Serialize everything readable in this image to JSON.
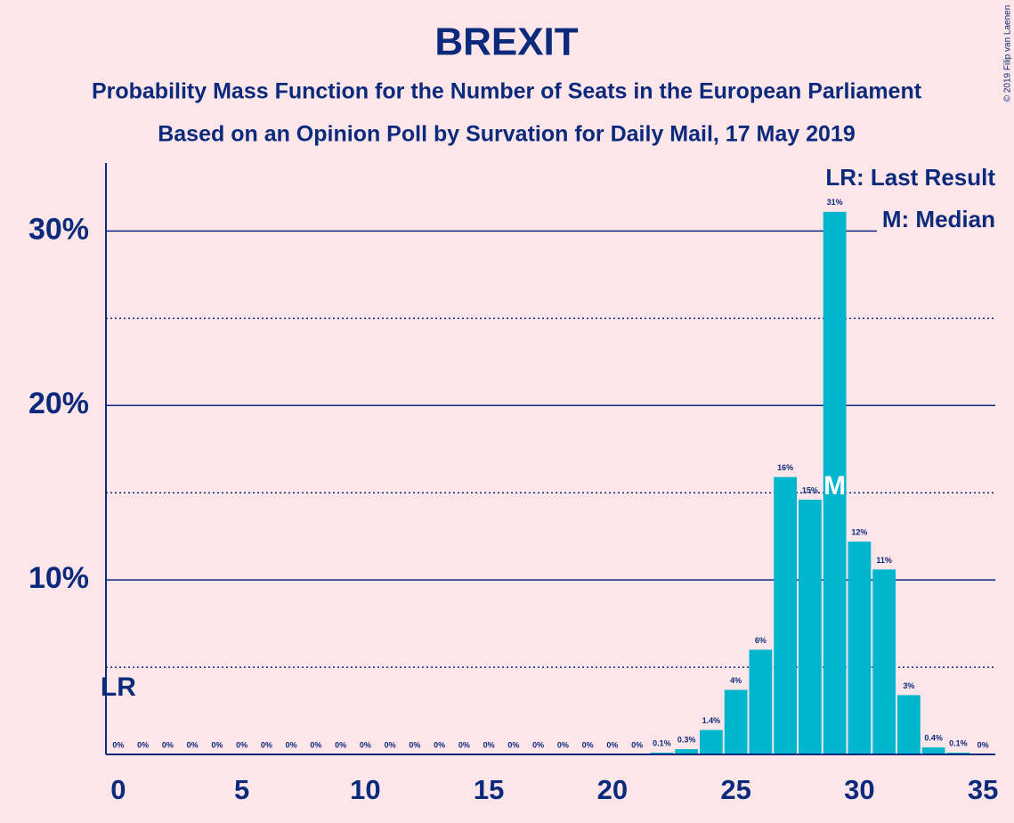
{
  "chart_data": {
    "type": "bar",
    "title": "BREXIT",
    "subtitle": "Probability Mass Function for the Number of Seats in the European Parliament",
    "subtitle2": "Based on an Opinion Poll by Survation for Daily Mail, 17 May 2019",
    "copyright": "© 2019 Filip van Laenen",
    "legend": [
      "LR: Last Result",
      "M: Median"
    ],
    "x": [
      0,
      1,
      2,
      3,
      4,
      5,
      6,
      7,
      8,
      9,
      10,
      11,
      12,
      13,
      14,
      15,
      16,
      17,
      18,
      19,
      20,
      21,
      22,
      23,
      24,
      25,
      26,
      27,
      28,
      29,
      30,
      31,
      32,
      33,
      34,
      35
    ],
    "values": [
      0,
      0,
      0,
      0,
      0,
      0,
      0,
      0,
      0,
      0,
      0,
      0,
      0,
      0,
      0,
      0,
      0,
      0,
      0,
      0,
      0,
      0,
      0.1,
      0.3,
      1.4,
      3.7,
      6.0,
      15.9,
      14.6,
      31.1,
      12.2,
      10.6,
      3.4,
      0.4,
      0.1,
      0
    ],
    "value_labels": [
      "0%",
      "0%",
      "0%",
      "0%",
      "0%",
      "0%",
      "0%",
      "0%",
      "0%",
      "0%",
      "0%",
      "0%",
      "0%",
      "0%",
      "0%",
      "0%",
      "0%",
      "0%",
      "0%",
      "0%",
      "0%",
      "0%",
      "0.1%",
      "0.3%",
      "1.4%",
      "4%",
      "6%",
      "16%",
      "15%",
      "31%",
      "12%",
      "11%",
      "3%",
      "0.4%",
      "0.1%",
      "0%"
    ],
    "color": "#00b6cf",
    "markers": [
      {
        "label": "LR",
        "x": 0
      },
      {
        "label": "M",
        "x": 29
      }
    ],
    "xlim": [
      -0.5,
      35.5
    ],
    "xticks": [
      0,
      5,
      10,
      15,
      20,
      25,
      30,
      35
    ],
    "ylim": [
      0,
      33.9
    ],
    "yticks": [
      {
        "value": 10,
        "label": "10%"
      },
      {
        "value": 20,
        "label": "20%"
      },
      {
        "value": 30,
        "label": "30%"
      }
    ],
    "minor_yticks": [
      5,
      15,
      25
    ],
    "grid": true
  }
}
